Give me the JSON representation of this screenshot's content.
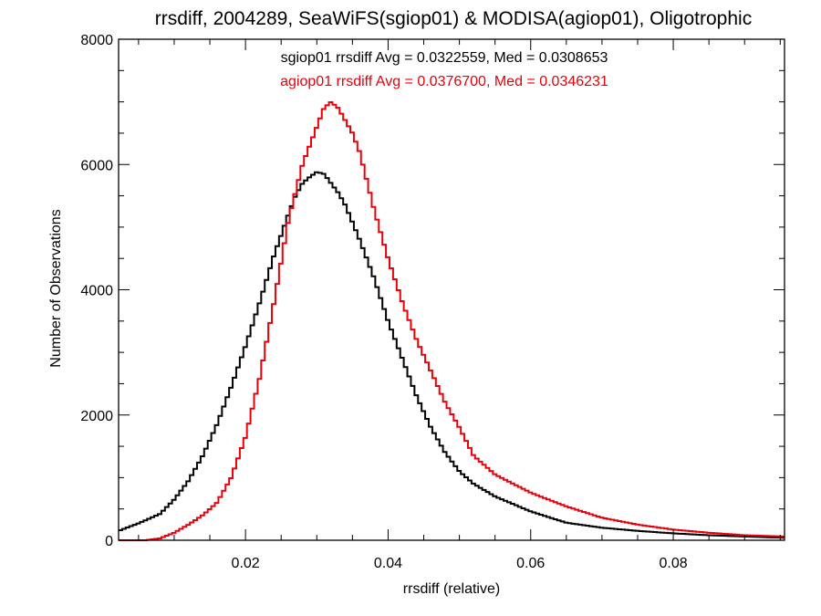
{
  "chart_data": {
    "type": "line",
    "style": "step-histogram",
    "title": "rrsdiff, 2004289, SeaWiFS(sgiop01) & MODISA(agiop01), Oligotrophic",
    "xlabel": "rrsdiff (relative)",
    "ylabel": "Number of Observations",
    "xlim": [
      0.0022,
      0.0956
    ],
    "ylim": [
      0,
      8000
    ],
    "xticks": [
      0.02,
      0.04,
      0.06,
      0.08
    ],
    "xtick_labels": [
      "0.02",
      "0.04",
      "0.06",
      "0.08"
    ],
    "yticks": [
      0,
      2000,
      4000,
      6000,
      8000
    ],
    "ytick_labels": [
      "0",
      "2000",
      "4000",
      "6000",
      "8000"
    ],
    "grid": false,
    "annotations": [
      {
        "text": "sgiop01 rrsdiff Avg = 0.0322559, Med = 0.0308653",
        "color": "#000000"
      },
      {
        "text": "agiop01 rrsdiff Avg = 0.0376700, Med = 0.0346231",
        "color": "#e8000b"
      }
    ],
    "series": [
      {
        "color": "#000000",
        "x": [
          0.0022,
          0.005,
          0.008,
          0.01,
          0.012,
          0.014,
          0.016,
          0.018,
          0.02,
          0.022,
          0.024,
          0.026,
          0.027,
          0.028,
          0.029,
          0.03,
          0.031,
          0.032,
          0.033,
          0.034,
          0.036,
          0.038,
          0.04,
          0.042,
          0.044,
          0.046,
          0.048,
          0.05,
          0.052,
          0.055,
          0.06,
          0.065,
          0.07,
          0.075,
          0.08,
          0.085,
          0.09,
          0.0956
        ],
        "y": [
          150,
          270,
          420,
          650,
          950,
          1350,
          1850,
          2450,
          3100,
          3800,
          4550,
          5200,
          5500,
          5700,
          5800,
          5880,
          5850,
          5700,
          5550,
          5350,
          4800,
          4200,
          3500,
          2900,
          2300,
          1800,
          1400,
          1100,
          900,
          700,
          460,
          280,
          200,
          150,
          110,
          80,
          60,
          40
        ]
      },
      {
        "color": "#e8000b",
        "x": [
          0.0022,
          0.006,
          0.008,
          0.01,
          0.012,
          0.014,
          0.016,
          0.018,
          0.02,
          0.022,
          0.024,
          0.026,
          0.028,
          0.03,
          0.031,
          0.032,
          0.033,
          0.034,
          0.035,
          0.036,
          0.038,
          0.04,
          0.042,
          0.044,
          0.046,
          0.048,
          0.05,
          0.052,
          0.055,
          0.06,
          0.065,
          0.07,
          0.075,
          0.08,
          0.085,
          0.09,
          0.0956
        ],
        "y": [
          0,
          0,
          30,
          120,
          250,
          400,
          600,
          1000,
          1650,
          2600,
          3800,
          5100,
          6000,
          6600,
          6900,
          7000,
          6900,
          6700,
          6500,
          6200,
          5300,
          4500,
          3800,
          3200,
          2700,
          2200,
          1800,
          1350,
          1050,
          760,
          540,
          360,
          250,
          170,
          120,
          80,
          60
        ]
      }
    ]
  }
}
